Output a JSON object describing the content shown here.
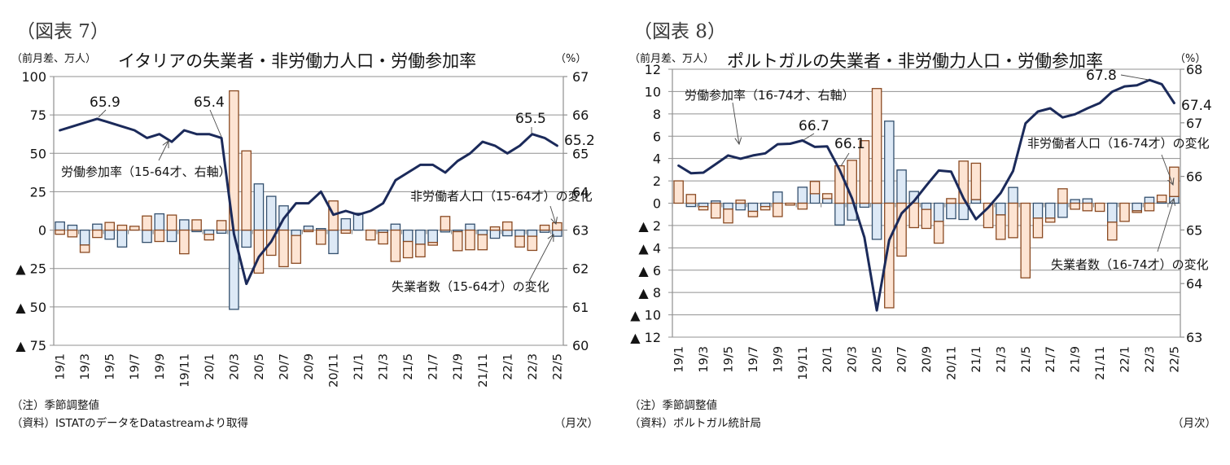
{
  "figures": [
    {
      "figure_label": "（図表 7）",
      "note": "（注）季節調整値",
      "source": "（資料）ISTATのデータをDatastreamより取得",
      "frequency": "（月次）"
    },
    {
      "figure_label": "（図表 8）",
      "note": "（注）季節調整値",
      "source": "（資料）ポルトガル統計局",
      "frequency": "（月次）"
    }
  ],
  "chart_data": [
    {
      "type": "bar",
      "stacked": true,
      "title": "イタリアの失業者・非労働力人口・労働参加率",
      "xlabel": "",
      "ylabel": "（前月差、万人）",
      "y2label": "（%）",
      "ylim": [
        -75,
        100
      ],
      "yticks": [
        100,
        75,
        50,
        25,
        0,
        -25,
        -50,
        -75
      ],
      "ytick_labels": [
        "100",
        "75",
        "50",
        "25",
        "0",
        "▲ 25",
        "▲ 50",
        "▲ 75"
      ],
      "y2lim": [
        60,
        67
      ],
      "y2ticks": [
        67,
        66,
        65,
        64,
        63,
        62,
        61,
        60
      ],
      "y2tick_labels": [
        "67",
        "66",
        "65",
        "64",
        "63",
        "62",
        "61",
        "60"
      ],
      "grid": true,
      "legend": "none (series labelled by callouts)",
      "categories": [
        "19/1",
        "19/2",
        "19/3",
        "19/4",
        "19/5",
        "19/6",
        "19/7",
        "19/8",
        "19/9",
        "19/10",
        "19/11",
        "19/12",
        "20/1",
        "20/2",
        "20/3",
        "20/4",
        "20/5",
        "20/6",
        "20/7",
        "20/8",
        "20/9",
        "20/10",
        "20/11",
        "20/12",
        "21/1",
        "21/2",
        "21/3",
        "21/4",
        "21/5",
        "21/6",
        "21/7",
        "21/8",
        "21/9",
        "21/10",
        "21/11",
        "21/12",
        "22/1",
        "22/2",
        "22/3",
        "22/4",
        "22/5"
      ],
      "x_tick_labels": [
        "19/1",
        "19/3",
        "19/5",
        "19/7",
        "19/9",
        "19/11",
        "20/1",
        "20/3",
        "20/5",
        "20/7",
        "20/9",
        "20/11",
        "21/1",
        "21/3",
        "21/5",
        "21/7",
        "21/9",
        "21/11",
        "22/1",
        "22/3",
        "22/5"
      ],
      "series": [
        {
          "name": "失業者数（15-64才）の変化",
          "type": "bar",
          "axis": "left",
          "color": "#dde9f6",
          "edge_color": "#34506e",
          "values": [
            5.3,
            3.2,
            -9.7,
            3.9,
            -5.9,
            -11.0,
            0.0,
            -8.0,
            10.6,
            -7.4,
            6.7,
            -1.0,
            -2.7,
            -2.0,
            -51.6,
            -11.1,
            30.1,
            22.0,
            15.8,
            -3.5,
            2.6,
            1.0,
            -15.3,
            7.4,
            11.0,
            0.0,
            -1.5,
            3.9,
            -7.4,
            -9.2,
            -8.0,
            -1.2,
            -1.0,
            3.9,
            -3.0,
            -5.3,
            -3.7,
            -4.0,
            -4.0,
            -1.4,
            -4.0
          ]
        },
        {
          "name": "非労働者人口（15-64才）の変化",
          "type": "bar",
          "axis": "left",
          "color": "#fde4d3",
          "edge_color": "#8a4a22",
          "values": [
            -2.7,
            -4.4,
            -4.8,
            -4.8,
            5.0,
            3.2,
            2.5,
            9.2,
            -7.4,
            9.8,
            -15.4,
            6.7,
            -3.7,
            6.2,
            90.7,
            51.6,
            -28.0,
            -16.4,
            -23.8,
            -18.1,
            -1.0,
            -9.2,
            19.0,
            -2.0,
            0.0,
            -6.4,
            -7.5,
            -20.4,
            -10.6,
            -8.2,
            -1.8,
            8.9,
            -12.4,
            -12.8,
            -9.8,
            2.1,
            5.3,
            -7.0,
            -9.2,
            3.2,
            4.8
          ]
        },
        {
          "name": "労働参加率（15-64才、右軸）",
          "type": "line",
          "axis": "right",
          "color": "#1b2a5a",
          "values": [
            65.6,
            65.7,
            65.8,
            65.9,
            65.8,
            65.7,
            65.6,
            65.4,
            65.5,
            65.3,
            65.6,
            65.5,
            65.5,
            65.4,
            62.9,
            61.6,
            62.3,
            62.7,
            63.3,
            63.7,
            63.7,
            64.0,
            63.4,
            63.5,
            63.4,
            63.5,
            63.7,
            64.3,
            64.5,
            64.7,
            64.7,
            64.5,
            64.8,
            65.0,
            65.3,
            65.2,
            65.0,
            65.2,
            65.5,
            65.4,
            65.2
          ]
        }
      ],
      "annotations": [
        {
          "text": "65.9",
          "category": "19/4"
        },
        {
          "text": "65.4",
          "category": "20/2"
        },
        {
          "text": "65.5",
          "category": "22/3"
        },
        {
          "text": "65.2",
          "category": "22/5"
        },
        {
          "text": "労働参加率（15-64才、右軸）"
        },
        {
          "text": "非労働者人口（15-64才）の変化"
        },
        {
          "text": "失業者数（15-64才）の変化"
        }
      ]
    },
    {
      "type": "bar",
      "stacked": true,
      "title": "ポルトガルの失業者・非労働力人口・労働参加率",
      "xlabel": "",
      "ylabel": "（前月差、万人）",
      "y2label": "（%）",
      "ylim": [
        -12,
        12
      ],
      "yticks": [
        12,
        10,
        8,
        6,
        4,
        2,
        0,
        -2,
        -4,
        -6,
        -8,
        -10,
        -12
      ],
      "ytick_labels": [
        "12",
        "10",
        "8",
        "6",
        "4",
        "2",
        "0",
        "▲ 2",
        "▲ 4",
        "▲ 6",
        "▲ 8",
        "▲ 10",
        "▲ 12"
      ],
      "y2lim": [
        63,
        68
      ],
      "y2ticks": [
        68,
        67,
        66,
        65,
        64,
        63
      ],
      "y2tick_labels": [
        "68",
        "67",
        "66",
        "65",
        "64",
        "63"
      ],
      "grid": true,
      "legend": "none (series labelled by callouts)",
      "categories": [
        "19/1",
        "19/2",
        "19/3",
        "19/4",
        "19/5",
        "19/6",
        "19/7",
        "19/8",
        "19/9",
        "19/10",
        "19/11",
        "19/12",
        "20/1",
        "20/2",
        "20/3",
        "20/4",
        "20/5",
        "20/6",
        "20/7",
        "20/8",
        "20/9",
        "20/10",
        "20/11",
        "20/12",
        "21/1",
        "21/2",
        "21/3",
        "21/4",
        "21/5",
        "21/6",
        "21/7",
        "21/8",
        "21/9",
        "21/10",
        "21/11",
        "21/12",
        "22/1",
        "22/2",
        "22/3",
        "22/4",
        "22/5"
      ],
      "x_tick_labels": [
        "19/1",
        "19/3",
        "19/5",
        "19/7",
        "19/9",
        "19/11",
        "20/1",
        "20/3",
        "20/5",
        "20/7",
        "20/9",
        "20/11",
        "21/1",
        "21/3",
        "21/5",
        "21/7",
        "21/9",
        "21/11",
        "22/1",
        "22/3",
        "22/5"
      ],
      "series": [
        {
          "name": "失業者数（16-74才）の変化",
          "type": "bar",
          "axis": "left",
          "color": "#dde9f6",
          "edge_color": "#34506e",
          "values": [
            0.0,
            -0.3,
            -0.3,
            0.2,
            -0.53,
            -0.6,
            -0.73,
            -0.3,
            1.0,
            0.0,
            1.43,
            0.85,
            0.41,
            -1.95,
            -1.51,
            -0.36,
            -3.24,
            7.35,
            2.97,
            1.05,
            -0.56,
            -1.63,
            -1.39,
            -1.46,
            0.32,
            0.0,
            -1.05,
            1.41,
            0.0,
            -1.34,
            -1.34,
            -1.27,
            0.32,
            0.39,
            0.0,
            -1.7,
            0.0,
            -0.68,
            0.53,
            0.12,
            0.6
          ]
        },
        {
          "name": "非労働者人口（16-74才）の変化",
          "type": "bar",
          "axis": "left",
          "color": "#fde4d3",
          "edge_color": "#8a4a22",
          "values": [
            2.0,
            0.78,
            -0.3,
            -1.33,
            -1.24,
            0.27,
            -0.48,
            -0.3,
            -1.2,
            -0.17,
            -0.53,
            1.1,
            0.44,
            3.35,
            3.84,
            5.6,
            10.27,
            -9.37,
            -4.74,
            -2.19,
            -1.7,
            -1.95,
            0.41,
            3.77,
            3.26,
            -2.19,
            -2.19,
            -3.09,
            -6.69,
            -1.75,
            -0.36,
            1.29,
            -0.54,
            -0.68,
            -0.73,
            -1.6,
            -1.63,
            -0.15,
            -0.68,
            0.6,
            2.63
          ]
        },
        {
          "name": "労働参加率（16-74才、右軸）",
          "type": "line",
          "axis": "right",
          "color": "#1b2a5a",
          "values": [
            66.2,
            66.06,
            66.07,
            66.23,
            66.39,
            66.33,
            66.39,
            66.43,
            66.6,
            66.61,
            66.67,
            66.55,
            66.56,
            66.12,
            65.59,
            64.86,
            63.5,
            64.81,
            65.31,
            65.54,
            65.83,
            66.11,
            66.09,
            65.59,
            65.2,
            65.42,
            65.69,
            66.1,
            66.99,
            67.21,
            67.27,
            67.1,
            67.16,
            67.27,
            67.37,
            67.58,
            67.68,
            67.7,
            67.8,
            67.72,
            67.37
          ]
        }
      ],
      "annotations": [
        {
          "text": "66.7",
          "category": "19/11"
        },
        {
          "text": "66.1",
          "category": "20/2"
        },
        {
          "text": "67.8",
          "category": "22/3"
        },
        {
          "text": "67.4",
          "category": "22/5"
        },
        {
          "text": "労働参加率（16-74才、右軸）"
        },
        {
          "text": "非労働者人口（16-74才）の変化"
        },
        {
          "text": "失業者数（16-74才）の変化"
        }
      ]
    }
  ]
}
